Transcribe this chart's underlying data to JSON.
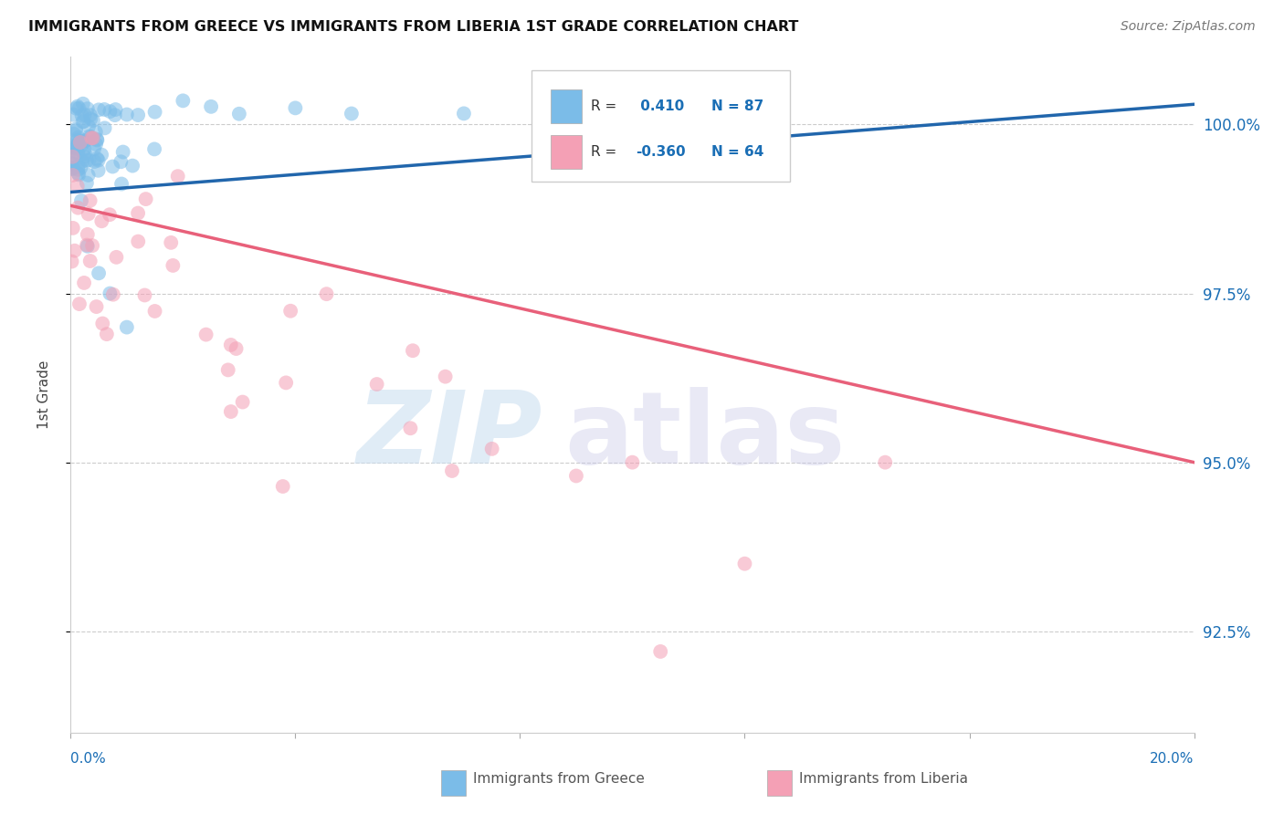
{
  "title": "IMMIGRANTS FROM GREECE VS IMMIGRANTS FROM LIBERIA 1ST GRADE CORRELATION CHART",
  "source": "Source: ZipAtlas.com",
  "ylabel": "1st Grade",
  "y_ticks": [
    92.5,
    95.0,
    97.5,
    100.0
  ],
  "y_tick_labels": [
    "92.5%",
    "95.0%",
    "97.5%",
    "100.0%"
  ],
  "xlim": [
    0.0,
    20.0
  ],
  "ylim": [
    91.0,
    101.0
  ],
  "greece_R": 0.41,
  "greece_N": 87,
  "liberia_R": -0.36,
  "liberia_N": 64,
  "greece_color": "#7bbce8",
  "liberia_color": "#f4a0b5",
  "greece_line_color": "#2166ac",
  "liberia_line_color": "#e8607a",
  "legend_R_color": "#1a6eb5",
  "background_color": "#ffffff",
  "greece_line_x0": 0.0,
  "greece_line_y0": 99.0,
  "greece_line_x1": 20.0,
  "greece_line_y1": 100.3,
  "liberia_line_x0": 0.0,
  "liberia_line_y0": 98.8,
  "liberia_line_x1": 20.0,
  "liberia_line_y1": 95.0
}
